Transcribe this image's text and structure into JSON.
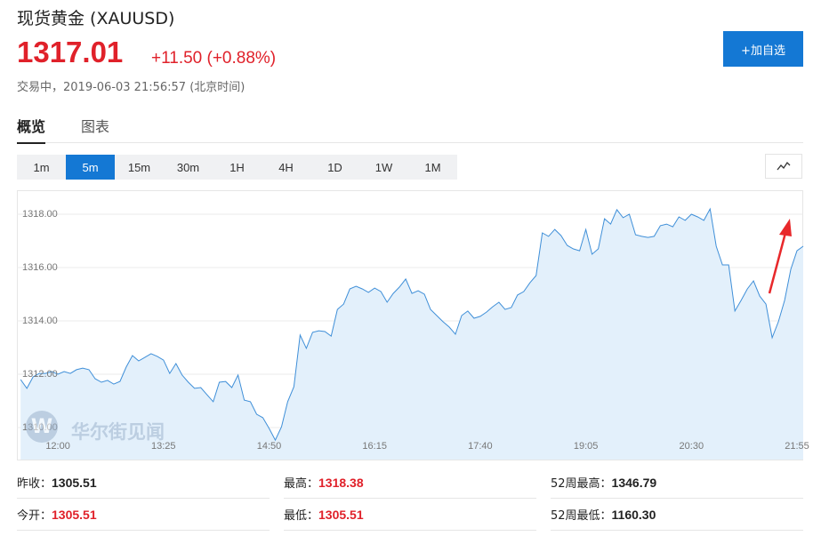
{
  "header": {
    "title": "现货黄金 (XAUUSD)",
    "price": "1317.01",
    "change": "+11.50 (+0.88%)",
    "status": "交易中，2019-06-03 21:56:57 (北京时间)",
    "button": "+加自选"
  },
  "tabs": {
    "items": [
      "概览",
      "图表"
    ],
    "active": 0
  },
  "intervals": {
    "items": [
      "1m",
      "5m",
      "15m",
      "30m",
      "1H",
      "4H",
      "1D",
      "1W",
      "1M"
    ],
    "active": 1
  },
  "watermark": "华尔街见闻",
  "chart_data": {
    "type": "area",
    "color": "#3f8fd8",
    "fill": "#e3f0fb",
    "grid": true,
    "x": [
      690,
      695,
      700,
      705,
      710,
      715,
      720,
      725,
      730,
      735,
      740,
      745,
      750,
      755,
      760,
      765,
      770,
      775,
      780,
      785,
      790,
      795,
      800,
      805,
      810,
      815,
      820,
      825,
      830,
      835,
      840,
      845,
      850,
      855,
      860,
      865,
      870,
      875,
      880,
      885,
      890,
      895,
      900,
      905,
      910,
      915,
      920,
      925,
      930,
      935,
      940,
      945,
      950,
      955,
      960,
      965,
      970,
      975,
      980,
      985,
      990,
      995,
      1000,
      1005,
      1010,
      1015,
      1020,
      1025,
      1030,
      1035,
      1040,
      1045,
      1050,
      1055,
      1060,
      1065,
      1070,
      1075,
      1080,
      1085,
      1090,
      1095,
      1100,
      1105,
      1110,
      1115,
      1120,
      1125,
      1130,
      1135,
      1140,
      1145,
      1150,
      1155,
      1160,
      1165,
      1170,
      1175,
      1180,
      1185,
      1190,
      1195,
      1200,
      1205,
      1210,
      1215,
      1220,
      1225,
      1230,
      1235,
      1240,
      1245,
      1250,
      1255,
      1260,
      1265,
      1270,
      1275,
      1280,
      1285,
      1290,
      1295,
      1300,
      1305,
      1310,
      1315,
      1320
    ],
    "values": [
      1311.8,
      1311.47,
      1311.9,
      1312.03,
      1312.03,
      1312.1,
      1312.0,
      1312.1,
      1312.03,
      1312.17,
      1312.23,
      1312.17,
      1311.83,
      1311.7,
      1311.77,
      1311.63,
      1311.73,
      1312.27,
      1312.7,
      1312.5,
      1312.63,
      1312.77,
      1312.67,
      1312.53,
      1312.03,
      1312.4,
      1311.97,
      1311.7,
      1311.47,
      1311.5,
      1311.23,
      1310.97,
      1311.7,
      1311.73,
      1311.5,
      1311.97,
      1311.03,
      1310.97,
      1310.5,
      1310.37,
      1309.97,
      1309.53,
      1310.03,
      1310.97,
      1311.53,
      1313.47,
      1312.97,
      1313.57,
      1313.63,
      1313.6,
      1313.43,
      1314.43,
      1314.63,
      1315.2,
      1315.3,
      1315.2,
      1315.07,
      1315.23,
      1315.1,
      1314.7,
      1315.03,
      1315.27,
      1315.57,
      1315.03,
      1315.13,
      1315.0,
      1314.43,
      1314.2,
      1313.97,
      1313.77,
      1313.5,
      1314.2,
      1314.37,
      1314.1,
      1314.17,
      1314.33,
      1314.53,
      1314.7,
      1314.43,
      1314.5,
      1314.97,
      1315.1,
      1315.43,
      1315.7,
      1317.3,
      1317.17,
      1317.43,
      1317.2,
      1316.83,
      1316.7,
      1316.63,
      1317.43,
      1316.5,
      1316.7,
      1317.83,
      1317.63,
      1318.17,
      1317.87,
      1318.0,
      1317.23,
      1317.17,
      1317.13,
      1317.17,
      1317.57,
      1317.63,
      1317.53,
      1317.9,
      1317.77,
      1318.0,
      1317.9,
      1317.77,
      1318.2,
      1316.8,
      1316.1,
      1316.1,
      1314.37,
      1314.77,
      1315.2,
      1315.5,
      1314.93,
      1314.63,
      1313.37,
      1313.97,
      1314.77,
      1315.93,
      1316.63,
      1316.8
    ],
    "xlim": [
      687,
      1320
    ],
    "xticks": [
      {
        "value": 720,
        "label": "12:00"
      },
      {
        "value": 805,
        "label": "13:25"
      },
      {
        "value": 890,
        "label": "14:50"
      },
      {
        "value": 975,
        "label": "16:15"
      },
      {
        "value": 1060,
        "label": "17:40"
      },
      {
        "value": 1145,
        "label": "19:05"
      },
      {
        "value": 1230,
        "label": "20:30"
      },
      {
        "value": 1315,
        "label": "21:55"
      }
    ],
    "ylim": [
      1308.8,
      1318.9
    ],
    "yticks": [
      {
        "value": 1310,
        "label": "1310.00"
      },
      {
        "value": 1312,
        "label": "1312.00"
      },
      {
        "value": 1314,
        "label": "1314.00"
      },
      {
        "value": 1316,
        "label": "1316.00"
      },
      {
        "value": 1318,
        "label": "1318.00"
      }
    ]
  },
  "stats": [
    {
      "label": "昨收：",
      "value": "1305.51",
      "color": "#222222"
    },
    {
      "label": "最高：",
      "value": "1318.38",
      "color": "#e0212a"
    },
    {
      "label": "52周最高：",
      "value": "1346.79",
      "color": "#222222"
    },
    {
      "label": "今开：",
      "value": "1305.51",
      "color": "#e0212a"
    },
    {
      "label": "最低：",
      "value": "1305.51",
      "color": "#e0212a"
    },
    {
      "label": "52周最低：",
      "value": "1160.30",
      "color": "#222222"
    }
  ]
}
